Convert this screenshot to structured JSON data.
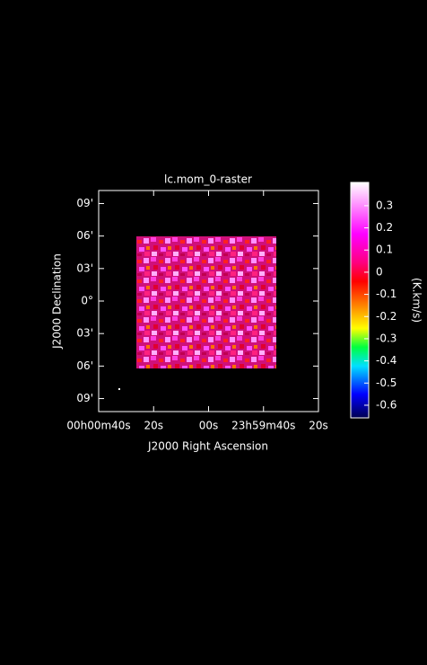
{
  "chart_data": {
    "type": "image",
    "title": "lc.mom_0-raster",
    "x_label": "J2000 Right Ascension",
    "y_label": "J2000 Declination",
    "xlim": [
      40,
      -40
    ],
    "xticks": [
      {
        "value": 40,
        "label": "00h00m40s"
      },
      {
        "value": 20,
        "label": "20s"
      },
      {
        "value": 0,
        "label": "00s"
      },
      {
        "value": -20,
        "label": "23h59m40s"
      },
      {
        "value": -40,
        "label": "20s"
      }
    ],
    "ylim": [
      -10.2,
      10.2
    ],
    "yticks": [
      {
        "value": 9,
        "label": "09'"
      },
      {
        "value": 6,
        "label": "06'"
      },
      {
        "value": 3,
        "label": "03'"
      },
      {
        "value": 0,
        "label": "0°"
      },
      {
        "value": -3,
        "label": "03'"
      },
      {
        "value": -6,
        "label": "06'"
      },
      {
        "value": -9,
        "label": "09'"
      }
    ],
    "colorbar": {
      "label": "(K.km/s)",
      "lim": [
        -0.657,
        0.405
      ],
      "ticks": [
        0.3,
        0.2,
        0.1,
        0,
        -0.1,
        -0.2,
        -0.3,
        -0.4,
        -0.5,
        -0.6
      ]
    }
  }
}
